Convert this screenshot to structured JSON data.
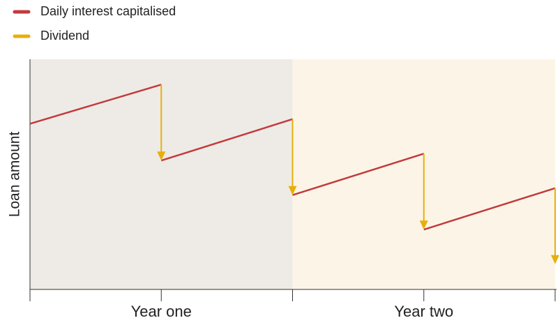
{
  "chart_data": {
    "type": "line",
    "ylabel": "Loan amount",
    "categories": [
      "Year one",
      "Year two"
    ],
    "category_x": [
      1,
      3
    ],
    "band_colors": [
      "#eeebe6",
      "#fcf5e7"
    ],
    "xlim": [
      0,
      4
    ],
    "xticks": [
      0,
      1,
      2,
      3,
      4
    ],
    "ylim": [
      0,
      100
    ],
    "series": [
      {
        "name": "Daily interest capitalised",
        "color": "#c23b3d",
        "x": [
          0,
          1,
          null,
          1,
          2,
          null,
          2,
          3,
          null,
          3,
          4
        ],
        "values": [
          72,
          89,
          null,
          56,
          74,
          null,
          41,
          59,
          null,
          26,
          44
        ]
      },
      {
        "name": "Dividend",
        "color": "#e8af0c",
        "x": [
          1,
          2,
          3,
          4
        ],
        "values": [
          56,
          41,
          26,
          11
        ]
      }
    ],
    "legend": "top-left"
  }
}
